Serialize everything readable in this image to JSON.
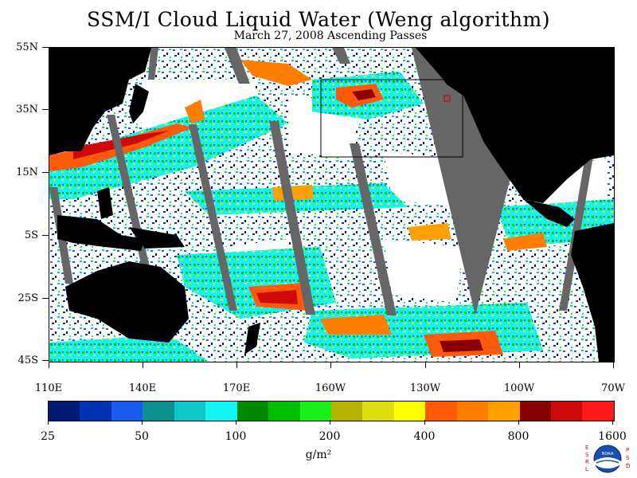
{
  "title": "SSM/I Cloud Liquid Water (Weng algorithm)",
  "subtitle": "March 27, 2008  Ascending Passes",
  "lat_labels": [
    "55N",
    "35N",
    "15N",
    "5S",
    "25S",
    "45S"
  ],
  "lon_labels": [
    "110E",
    "140E",
    "170E",
    "160W",
    "130W",
    "100W",
    "70W"
  ],
  "colorbar": {
    "colors": [
      "#001a7a",
      "#0033b3",
      "#1a5cf2",
      "#0e9090",
      "#0fc6c6",
      "#11f4f4",
      "#008a00",
      "#00c000",
      "#19f019",
      "#b3b300",
      "#dede0f",
      "#ffff00",
      "#ff5a0a",
      "#ff7e00",
      "#ffa000",
      "#8a0000",
      "#cc0a0a",
      "#ff1a1a"
    ],
    "labels": [
      "25",
      "50",
      "100",
      "200",
      "400",
      "800",
      "1600"
    ]
  },
  "unit": "g/m²",
  "logo": {
    "letters_left": "ESRL",
    "letters_right": "PSD",
    "center": "NOAA"
  },
  "land_color": "#000000",
  "missing_swath_color": "#666666"
}
